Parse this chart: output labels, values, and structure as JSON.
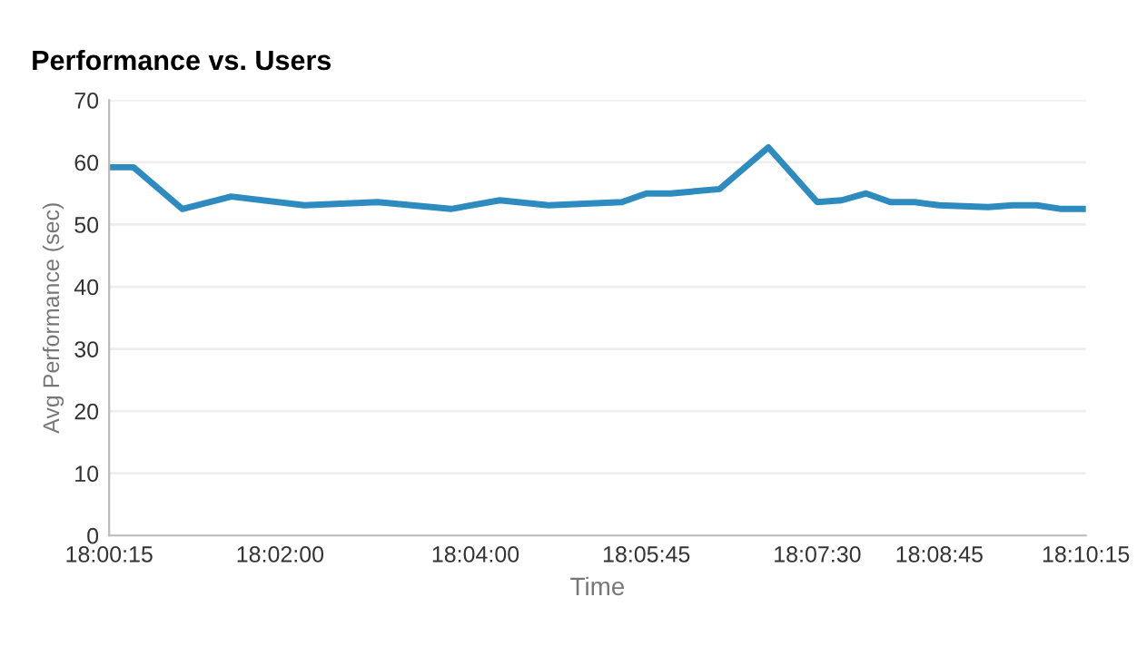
{
  "chart_data": {
    "type": "line",
    "title": "Performance vs. Users",
    "xlabel": "Time",
    "ylabel": "Avg Performance (sec)",
    "x": [
      18.004167,
      18.008333,
      18.016667,
      18.025,
      18.0375,
      18.05,
      18.0625,
      18.070833,
      18.079167,
      18.091667,
      18.095833,
      18.1,
      18.108333,
      18.116667,
      18.125,
      18.129167,
      18.133333,
      18.1375,
      18.141667,
      18.145833,
      18.154167,
      18.158333,
      18.1625,
      18.166667,
      18.170833
    ],
    "series": [
      {
        "color": "#2e8bc0",
        "values": [
          59.2,
          59.2,
          52.5,
          54.5,
          53.1,
          53.6,
          52.5,
          53.9,
          53.1,
          53.6,
          55,
          55,
          55.7,
          62.4,
          53.6,
          53.9,
          55,
          53.6,
          53.6,
          53.1,
          52.8,
          53.1,
          53.1,
          52.5,
          52.5
        ]
      }
    ],
    "xlim": [
      18.004167,
      18.170833
    ],
    "xticks": [
      {
        "value": 18.004167,
        "label": "18:00:15"
      },
      {
        "value": 18.033333,
        "label": "18:02:00"
      },
      {
        "value": 18.066667,
        "label": "18:04:00"
      },
      {
        "value": 18.095833,
        "label": "18:05:45"
      },
      {
        "value": 18.125,
        "label": "18:07:30"
      },
      {
        "value": 18.145833,
        "label": "18:08:45"
      },
      {
        "value": 18.170833,
        "label": "18:10:15"
      }
    ],
    "ylim": [
      0,
      70
    ],
    "yticks": [
      0,
      10,
      20,
      30,
      40,
      50,
      60,
      70
    ],
    "grid": "y",
    "marker": "none",
    "line_style": "solid"
  }
}
